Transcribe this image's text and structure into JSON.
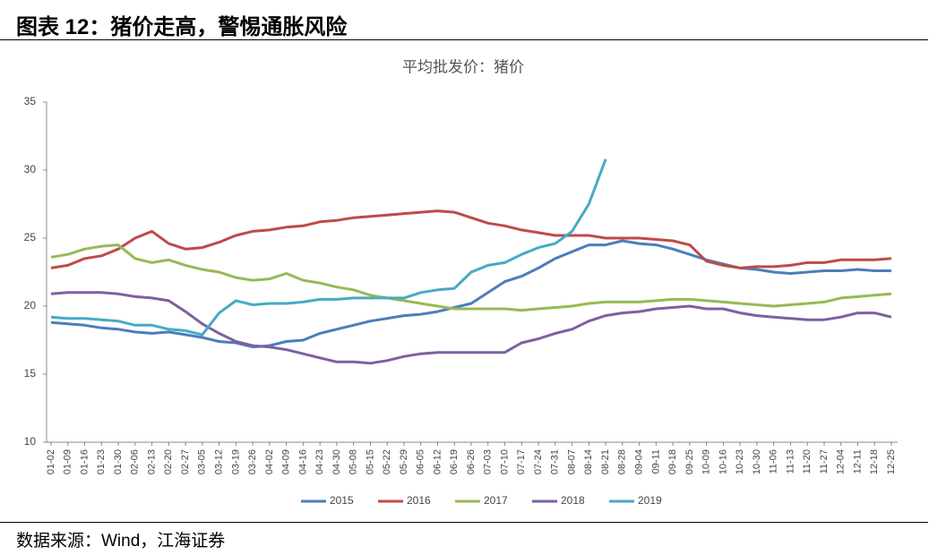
{
  "heading": "图表 12：猪价走高，警惕通胀风险",
  "source": "数据来源：Wind，江海证券",
  "chart_data": {
    "type": "line",
    "title": "平均批发价：猪价",
    "categories": [
      "01-02",
      "01-09",
      "01-16",
      "01-23",
      "01-30",
      "02-06",
      "02-13",
      "02-20",
      "02-27",
      "03-05",
      "03-12",
      "03-19",
      "03-26",
      "04-02",
      "04-09",
      "04-16",
      "04-23",
      "04-30",
      "05-08",
      "05-15",
      "05-22",
      "05-29",
      "06-05",
      "06-12",
      "06-19",
      "06-26",
      "07-03",
      "07-10",
      "07-17",
      "07-24",
      "07-31",
      "08-07",
      "08-14",
      "08-21",
      "08-28",
      "09-04",
      "09-11",
      "09-18",
      "09-25",
      "10-09",
      "10-16",
      "10-23",
      "10-30",
      "11-06",
      "11-13",
      "11-20",
      "11-27",
      "12-04",
      "12-11",
      "12-18",
      "12-25"
    ],
    "series": [
      {
        "name": "2015",
        "color": "#4a7ebb",
        "values": [
          18.8,
          18.7,
          18.6,
          18.4,
          18.3,
          18.1,
          18.0,
          18.1,
          17.9,
          17.7,
          17.4,
          17.3,
          17.0,
          17.1,
          17.4,
          17.5,
          18.0,
          18.3,
          18.6,
          18.9,
          19.1,
          19.3,
          19.4,
          19.6,
          19.9,
          20.2,
          21.0,
          21.8,
          22.2,
          22.8,
          23.5,
          24.0,
          24.5,
          24.5,
          24.8,
          24.6,
          24.5,
          24.2,
          23.8,
          23.4,
          23.1,
          22.8,
          22.7,
          22.5,
          22.4,
          22.5,
          22.6,
          22.6,
          22.7,
          22.6,
          22.6
        ]
      },
      {
        "name": "2016",
        "color": "#be4b48",
        "values": [
          22.8,
          23.0,
          23.5,
          23.7,
          24.2,
          25.0,
          25.5,
          24.6,
          24.2,
          24.3,
          24.7,
          25.2,
          25.5,
          25.6,
          25.8,
          25.9,
          26.2,
          26.3,
          26.5,
          26.6,
          26.7,
          26.8,
          26.9,
          27.0,
          26.9,
          26.5,
          26.1,
          25.9,
          25.6,
          25.4,
          25.2,
          25.2,
          25.2,
          25.0,
          25.0,
          25.0,
          24.9,
          24.8,
          24.5,
          23.3,
          23.0,
          22.8,
          22.9,
          22.9,
          23.0,
          23.2,
          23.2,
          23.4,
          23.4,
          23.4,
          23.5
        ]
      },
      {
        "name": "2017",
        "color": "#98b954",
        "values": [
          23.6,
          23.8,
          24.2,
          24.4,
          24.5,
          23.5,
          23.2,
          23.4,
          23.0,
          22.7,
          22.5,
          22.1,
          21.9,
          22.0,
          22.4,
          21.9,
          21.7,
          21.4,
          21.2,
          20.8,
          20.6,
          20.4,
          20.2,
          20.0,
          19.8,
          19.8,
          19.8,
          19.8,
          19.7,
          19.8,
          19.9,
          20.0,
          20.2,
          20.3,
          20.3,
          20.3,
          20.4,
          20.5,
          20.5,
          20.4,
          20.3,
          20.2,
          20.1,
          20.0,
          20.1,
          20.2,
          20.3,
          20.6,
          20.7,
          20.8,
          20.9
        ]
      },
      {
        "name": "2018",
        "color": "#7d60a0",
        "values": [
          20.9,
          21.0,
          21.0,
          21.0,
          20.9,
          20.7,
          20.6,
          20.4,
          19.6,
          18.7,
          18.0,
          17.4,
          17.1,
          17.0,
          16.8,
          16.5,
          16.2,
          15.9,
          15.9,
          15.8,
          16.0,
          16.3,
          16.5,
          16.6,
          16.6,
          16.6,
          16.6,
          16.6,
          17.3,
          17.6,
          18.0,
          18.3,
          18.9,
          19.3,
          19.5,
          19.6,
          19.8,
          19.9,
          20.0,
          19.8,
          19.8,
          19.5,
          19.3,
          19.2,
          19.1,
          19.0,
          19.0,
          19.2,
          19.5,
          19.5,
          19.2
        ]
      },
      {
        "name": "2019",
        "color": "#46aac5",
        "values": [
          19.2,
          19.1,
          19.1,
          19.0,
          18.9,
          18.6,
          18.6,
          18.3,
          18.2,
          17.9,
          19.5,
          20.4,
          20.1,
          20.2,
          20.2,
          20.3,
          20.5,
          20.5,
          20.6,
          20.6,
          20.6,
          20.6,
          21.0,
          21.2,
          21.3,
          22.5,
          23.0,
          23.2,
          23.8,
          24.3,
          24.6,
          25.5,
          27.5,
          30.8,
          null,
          null,
          null,
          null,
          null,
          null,
          null,
          null,
          null,
          null,
          null,
          null,
          null,
          null,
          null,
          null,
          null
        ]
      }
    ],
    "ylim": [
      10,
      35
    ],
    "yticks": [
      10,
      15,
      20,
      25,
      30,
      35
    ],
    "grid": false,
    "legend": "bottom"
  }
}
